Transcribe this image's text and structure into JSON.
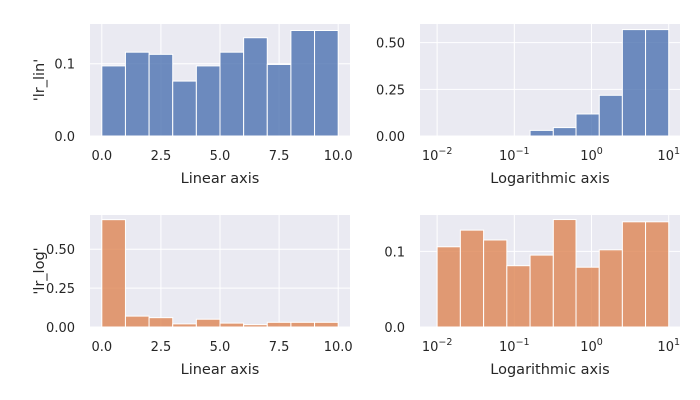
{
  "chart_data": [
    {
      "type": "bar",
      "subtype": "histogram",
      "xscale": "linear",
      "xlabel": "Linear axis",
      "ylabel": "'lr_lin'",
      "xlim": [
        -0.5,
        10.5
      ],
      "ylim": [
        0,
        0.155
      ],
      "xticks": [
        0,
        2.5,
        5,
        7.5,
        10
      ],
      "xtick_labels": [
        "0.0",
        "2.5",
        "5.0",
        "7.5",
        "10.0"
      ],
      "yticks": [
        0,
        0.1
      ],
      "ytick_labels": [
        "0.0",
        "0.1"
      ],
      "bin_edges": [
        0,
        1,
        2,
        3,
        4,
        5,
        6,
        7,
        8,
        9,
        10
      ],
      "values": [
        0.097,
        0.116,
        0.113,
        0.076,
        0.097,
        0.116,
        0.136,
        0.099,
        0.146,
        0.146
      ],
      "color": "#4c72b0",
      "grid": true
    },
    {
      "type": "bar",
      "subtype": "histogram",
      "xscale": "log",
      "xlabel": "Logarithmic axis",
      "ylabel": "",
      "xlim": [
        0.006,
        14
      ],
      "ylim": [
        0,
        0.6
      ],
      "xticks": [
        0.01,
        0.1,
        1,
        10
      ],
      "xtick_labels": [
        [
          "10",
          "−2"
        ],
        [
          "10",
          "−1"
        ],
        [
          "10",
          "0"
        ],
        [
          "10",
          "1"
        ]
      ],
      "yticks": [
        0,
        0.25,
        0.5
      ],
      "ytick_labels": [
        "0.00",
        "0.25",
        "0.50"
      ],
      "bin_edges": [
        0.01,
        0.02,
        0.04,
        0.08,
        0.16,
        0.32,
        0.63,
        1.26,
        2.51,
        5.01,
        10
      ],
      "values": [
        0.0,
        0.0,
        0.0,
        0.0,
        0.03,
        0.045,
        0.118,
        0.218,
        0.57,
        0.57
      ],
      "color": "#4c72b0",
      "grid": true
    },
    {
      "type": "bar",
      "subtype": "histogram",
      "xscale": "linear",
      "xlabel": "Linear axis",
      "ylabel": "'lr_log'",
      "xlim": [
        -0.5,
        10.5
      ],
      "ylim": [
        0,
        0.72
      ],
      "xticks": [
        0,
        2.5,
        5,
        7.5,
        10
      ],
      "xtick_labels": [
        "0.0",
        "2.5",
        "5.0",
        "7.5",
        "10.0"
      ],
      "yticks": [
        0,
        0.25,
        0.5
      ],
      "ytick_labels": [
        "0.00",
        "0.25",
        "0.50"
      ],
      "bin_edges": [
        0,
        1,
        2,
        3,
        4,
        5,
        6,
        7,
        8,
        9,
        10
      ],
      "values": [
        0.69,
        0.07,
        0.06,
        0.02,
        0.05,
        0.025,
        0.015,
        0.03,
        0.03,
        0.03
      ],
      "color": "#dd8452",
      "grid": true
    },
    {
      "type": "bar",
      "subtype": "histogram",
      "xscale": "log",
      "xlabel": "Logarithmic axis",
      "ylabel": "",
      "xlim": [
        0.006,
        14
      ],
      "ylim": [
        0,
        0.148
      ],
      "xticks": [
        0.01,
        0.1,
        1,
        10
      ],
      "xtick_labels": [
        [
          "10",
          "−2"
        ],
        [
          "10",
          "−1"
        ],
        [
          "10",
          "0"
        ],
        [
          "10",
          "1"
        ]
      ],
      "yticks": [
        0,
        0.1
      ],
      "ytick_labels": [
        "0.0",
        "0.1"
      ],
      "bin_edges": [
        0.01,
        0.02,
        0.04,
        0.08,
        0.16,
        0.32,
        0.63,
        1.26,
        2.51,
        5.01,
        10
      ],
      "values": [
        0.106,
        0.128,
        0.115,
        0.081,
        0.095,
        0.142,
        0.079,
        0.102,
        0.139,
        0.139
      ],
      "color": "#dd8452",
      "grid": true
    }
  ]
}
